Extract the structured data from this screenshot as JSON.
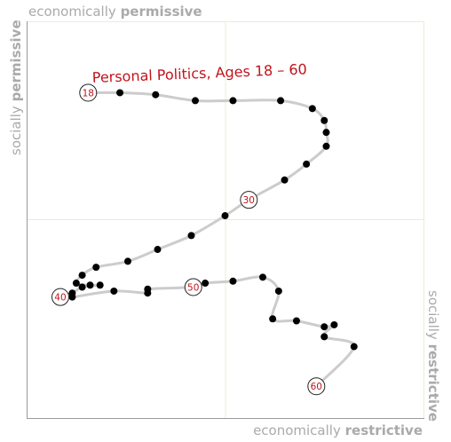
{
  "chart_data": {
    "type": "line",
    "title": "Personal Politics, Ages 18 – 60",
    "axis_labels": {
      "top": {
        "prefix": "economically",
        "emphasis": "permissive"
      },
      "bottom": {
        "prefix": "economically",
        "emphasis": "restrictive"
      },
      "left": {
        "prefix": "socially",
        "emphasis": "permissive"
      },
      "right": {
        "prefix": "socially",
        "emphasis": "restrictive"
      }
    },
    "xlim": [
      -10,
      10
    ],
    "ylim": [
      -10,
      10
    ],
    "grid": "center crosshair",
    "colors": {
      "title": "#c0141c",
      "labels": "#c0141c",
      "line": "#cccccc",
      "points": "#000000",
      "axes": "#aaaaaa"
    },
    "series": [
      {
        "points": [
          {
            "x": -6.9,
            "y": 6.4,
            "label": "18"
          },
          {
            "x": -5.3,
            "y": 6.4
          },
          {
            "x": -3.5,
            "y": 6.3
          },
          {
            "x": -1.5,
            "y": 6.0
          },
          {
            "x": 0.4,
            "y": 6.0
          },
          {
            "x": 2.8,
            "y": 6.0
          },
          {
            "x": 4.4,
            "y": 5.6
          },
          {
            "x": 5.0,
            "y": 5.0
          },
          {
            "x": 5.1,
            "y": 4.4
          },
          {
            "x": 5.1,
            "y": 3.7
          },
          {
            "x": 4.1,
            "y": 2.8
          },
          {
            "x": 3.0,
            "y": 2.0
          },
          {
            "x": 1.2,
            "y": 1.0,
            "label": "30"
          },
          {
            "x": 0.0,
            "y": 0.2
          },
          {
            "x": -1.7,
            "y": -0.8
          },
          {
            "x": -3.4,
            "y": -1.5
          },
          {
            "x": -4.9,
            "y": -2.1
          },
          {
            "x": -6.5,
            "y": -2.4
          },
          {
            "x": -7.2,
            "y": -2.8
          },
          {
            "x": -7.5,
            "y": -3.2
          },
          {
            "x": -6.8,
            "y": -3.3
          },
          {
            "x": -6.3,
            "y": -3.3
          },
          {
            "x": -7.2,
            "y": -3.4
          },
          {
            "x": -7.7,
            "y": -3.7
          },
          {
            "x": -8.3,
            "y": -3.9,
            "label": "40"
          },
          {
            "x": -7.7,
            "y": -3.9
          },
          {
            "x": -5.6,
            "y": -3.6
          },
          {
            "x": -3.9,
            "y": -3.7
          },
          {
            "x": -3.9,
            "y": -3.5
          },
          {
            "x": -1.6,
            "y": -3.4,
            "label": "50"
          },
          {
            "x": -1.0,
            "y": -3.2
          },
          {
            "x": 0.4,
            "y": -3.1
          },
          {
            "x": 1.9,
            "y": -2.9
          },
          {
            "x": 2.7,
            "y": -3.6
          },
          {
            "x": 2.4,
            "y": -5.0
          },
          {
            "x": 3.6,
            "y": -5.1
          },
          {
            "x": 5.0,
            "y": -5.4
          },
          {
            "x": 5.5,
            "y": -5.3
          },
          {
            "x": 5.0,
            "y": -5.9
          },
          {
            "x": 6.5,
            "y": -6.4
          },
          {
            "x": 4.6,
            "y": -8.4,
            "label": "60"
          }
        ]
      }
    ]
  }
}
